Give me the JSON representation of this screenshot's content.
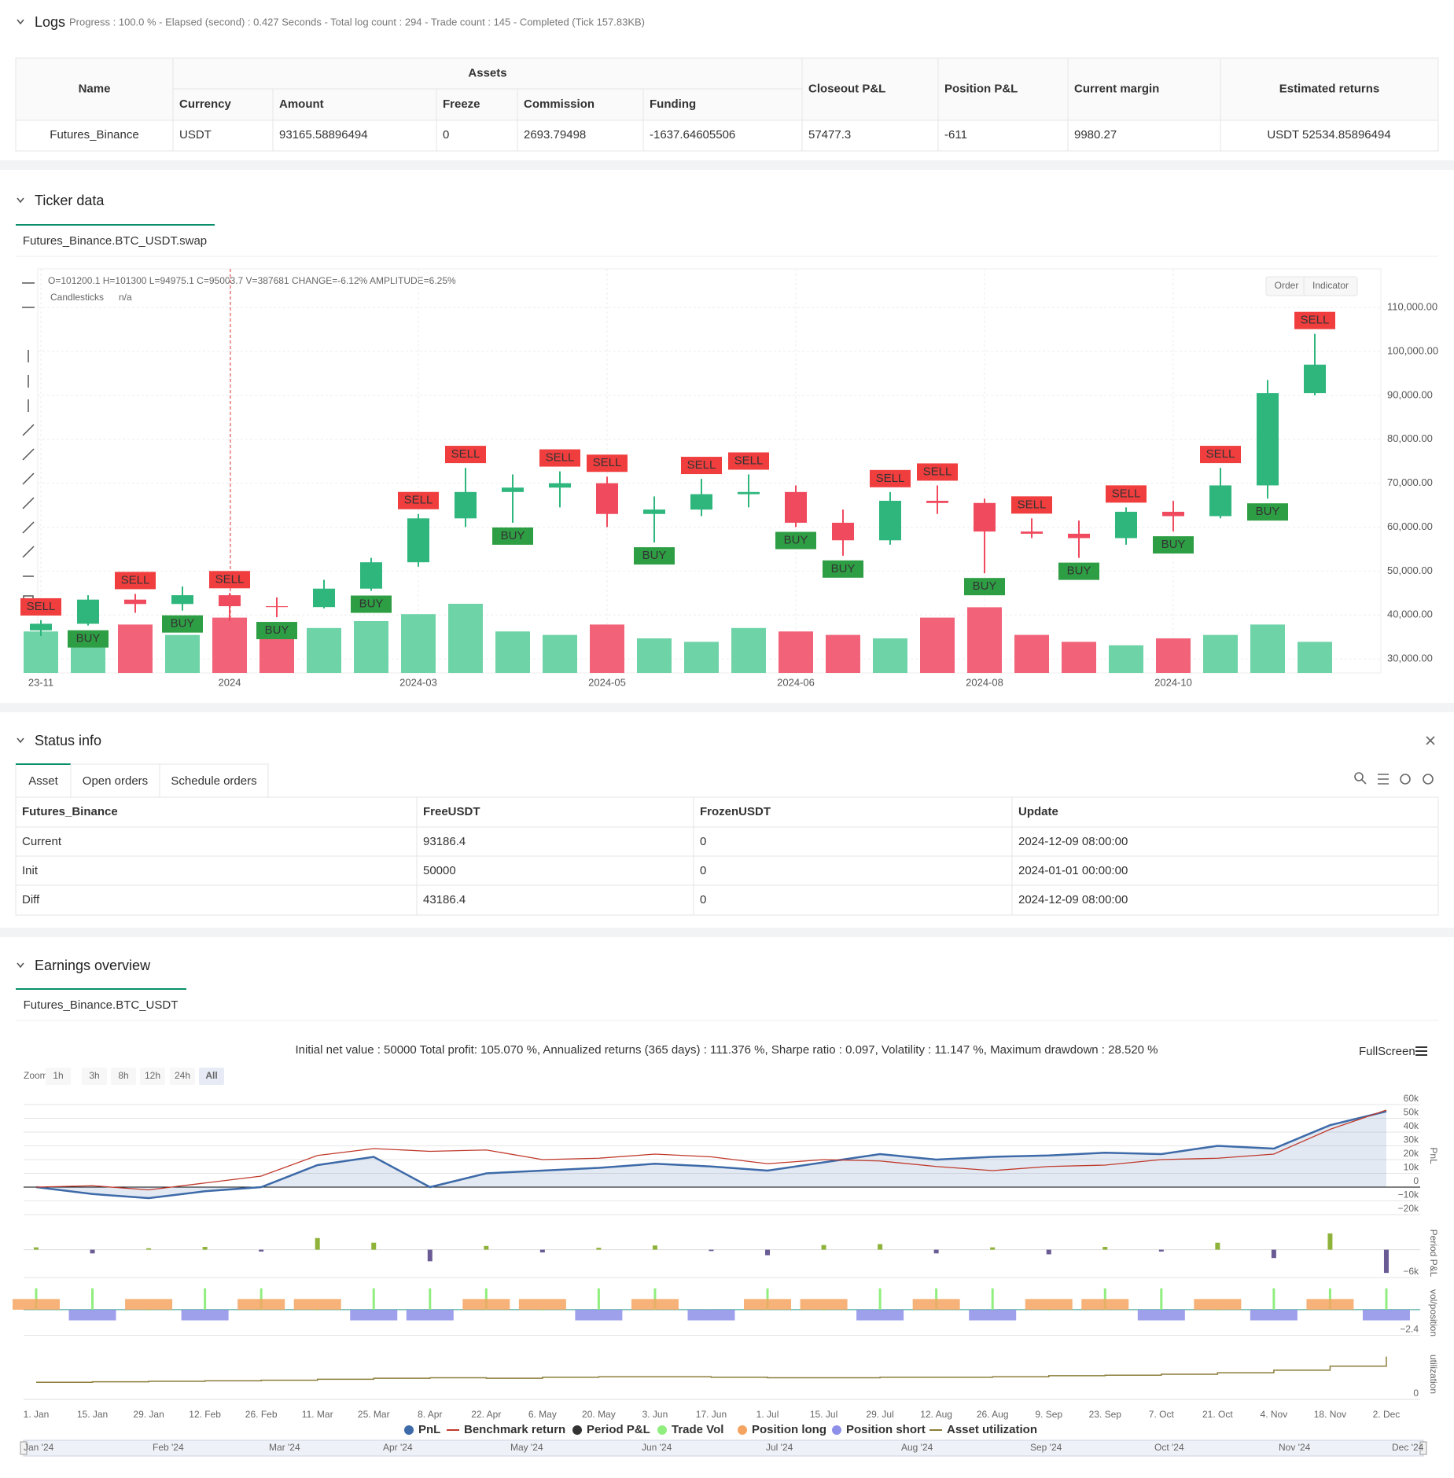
{
  "logs": {
    "title": "Logs",
    "summary": "Progress : 100.0 % - Elapsed (second) : 0.427 Seconds - Total log count : 294 - Trade count : 145 - Completed (Tick 157.83KB)",
    "table": {
      "groups": [
        "Name",
        "Assets",
        "Closeout P&L",
        "Position P&L",
        "Current margin",
        "Estimated returns"
      ],
      "columns": [
        "Currency",
        "Amount",
        "Freeze",
        "Commission",
        "Funding"
      ],
      "rows": [
        [
          "Futures_Binance",
          "USDT",
          "93165.58896494",
          "0",
          "2693.79498",
          "-1637.64605506",
          "57477.3",
          "-611",
          "9980.27",
          "USDT 52534.85896494"
        ]
      ]
    }
  },
  "ticker": {
    "title": "Ticker data",
    "tab": "Futures_Binance.BTC_USDT.swap",
    "ohlc": "O=101200.1 H=101300 L=94975.1 C=95003.7 V=387681 CHANGE=-6.12% AMPLITUDE=6.25%",
    "series_label": "Candlesticks",
    "series_value": "n/a",
    "buttons": [
      "Order",
      "Indicator"
    ],
    "chart": {
      "type": "candlestick",
      "categories": [
        "23-11",
        null,
        null,
        null,
        "2024",
        null,
        null,
        null,
        "2024-03",
        null,
        null,
        null,
        "2024-05",
        null,
        null,
        null,
        "2024-06",
        null,
        null,
        null,
        "2024-08",
        null,
        null,
        null,
        "2024-10",
        null,
        null,
        null
      ],
      "open": [
        36500,
        38000,
        43500,
        42500,
        44500,
        42000,
        41800,
        46000,
        52000,
        62000,
        68000,
        69000,
        70000,
        63000,
        64000,
        67500,
        68000,
        61000,
        57000,
        66000,
        65500,
        59000,
        58500,
        57500,
        63500,
        62500,
        69500,
        90500
      ],
      "high": [
        38800,
        44500,
        44800,
        46500,
        45000,
        44000,
        48000,
        53000,
        63000,
        73500,
        72000,
        72700,
        71500,
        67000,
        71000,
        72000,
        69500,
        64000,
        68000,
        69500,
        66500,
        62000,
        61500,
        64500,
        66000,
        73500,
        93500,
        104000
      ],
      "low": [
        35200,
        37600,
        40500,
        41000,
        38600,
        39500,
        41500,
        45500,
        51000,
        60000,
        61000,
        64500,
        60000,
        56500,
        62500,
        64500,
        60000,
        53500,
        56000,
        63000,
        49500,
        57500,
        53000,
        56000,
        59000,
        62000,
        66500,
        90000
      ],
      "close": [
        38000,
        43500,
        42500,
        44500,
        42000,
        41800,
        46000,
        52000,
        62000,
        68000,
        69000,
        70000,
        63000,
        64000,
        67500,
        68000,
        61000,
        57000,
        66000,
        65500,
        59000,
        58500,
        57500,
        63500,
        62500,
        69500,
        90500,
        97000
      ],
      "volume": [
        60,
        45,
        70,
        55,
        80,
        50,
        65,
        75,
        85,
        100,
        60,
        55,
        70,
        50,
        45,
        65,
        60,
        55,
        50,
        80,
        95,
        55,
        45,
        40,
        50,
        55,
        70,
        45
      ],
      "signals": [
        "SELL",
        "BUY",
        "SELL",
        "BUY",
        "SELL",
        "BUY",
        null,
        "BUY",
        "SELL",
        "SELL",
        "BUY",
        "SELL",
        "SELL",
        "BUY",
        "SELL",
        "SELL",
        "BUY",
        "BUY",
        "SELL",
        "SELL",
        "BUY",
        "SELL",
        "BUY",
        "SELL",
        "BUY",
        "SELL",
        "BUY",
        "SELL"
      ],
      "up_color": "#2eb67d",
      "down_color": "#f04a5e",
      "volume_up_color": "#6fd3a8",
      "volume_down_color": "#f2637a",
      "buy_color": "#2e9e44",
      "sell_color": "#f03e3e",
      "ylim": [
        26800,
        118800
      ],
      "yticks": [
        {
          "value": 30000,
          "label": "30,000.00"
        },
        {
          "value": 40000,
          "label": "40,000.00"
        },
        {
          "value": 50000,
          "label": "50,000.00"
        },
        {
          "value": 60000,
          "label": "60,000.00"
        },
        {
          "value": 70000,
          "label": "70,000.00"
        },
        {
          "value": 80000,
          "label": "80,000.00"
        },
        {
          "value": 90000,
          "label": "90,000.00"
        },
        {
          "value": 100000,
          "label": "100,000.00"
        },
        {
          "value": 110000,
          "label": "110,000.00"
        }
      ],
      "grid": true
    }
  },
  "status": {
    "title": "Status info",
    "tabs": [
      "Asset",
      "Open orders",
      "Schedule orders"
    ],
    "table": {
      "columns": [
        "Futures_Binance",
        "FreeUSDT",
        "FrozenUSDT",
        "Update"
      ],
      "rows": [
        [
          "Current",
          "93186.4",
          "0",
          "2024-12-09 08:00:00"
        ],
        [
          "Init",
          "50000",
          "0",
          "2024-01-01 00:00:00"
        ],
        [
          "Diff",
          "43186.4",
          "0",
          "2024-12-09 08:00:00"
        ]
      ]
    }
  },
  "earnings": {
    "title": "Earnings overview",
    "tab": "Futures_Binance.BTC_USDT",
    "summary": "Initial net value : 50000 Total profit: 105.070 %, Annualized returns (365 days) : 111.376 %, Sharpe ratio : 0.097, Volatility : 11.147 %, Maximum drawdown : 28.520 %",
    "fullscreen": "FullScreen",
    "zoom_label": "Zoom",
    "zoom_buttons": [
      "1h",
      "3h",
      "8h",
      "12h",
      "24h",
      "All"
    ],
    "navigator": [
      "Jan '24",
      "Feb '24",
      "Mar '24",
      "Apr '24",
      "May '24",
      "Jun '24",
      "Jul '24",
      "Aug '24",
      "Sep '24",
      "Oct '24",
      "Nov '24",
      "Dec '24"
    ],
    "chart": {
      "type": "multi-panel",
      "categories": [
        "1. Jan",
        "15. Jan",
        "29. Jan",
        "12. Feb",
        "26. Feb",
        "11. Mar",
        "25. Mar",
        "8. Apr",
        "22. Apr",
        "6. May",
        "20. May",
        "3. Jun",
        "17. Jun",
        "1. Jul",
        "15. Jul",
        "29. Jul",
        "12. Aug",
        "26. Aug",
        "9. Sep",
        "23. Sep",
        "7. Oct",
        "21. Oct",
        "4. Nov",
        "18. Nov",
        "2. Dec"
      ],
      "panels": [
        {
          "title": "PnL",
          "ylim": [
            -21700,
            67400
          ],
          "yticks": [
            {
              "value": 60000,
              "label": "60k"
            },
            {
              "value": 50000,
              "label": "50k"
            },
            {
              "value": 40000,
              "label": "40k"
            },
            {
              "value": 30000,
              "label": "30k"
            },
            {
              "value": 20000,
              "label": "20k"
            },
            {
              "value": 10000,
              "label": "10k"
            },
            0,
            {
              "value": -10000,
              "label": "−10k"
            },
            {
              "value": -20000,
              "label": "−20k"
            }
          ]
        },
        {
          "title": "Period P&L",
          "ylim": [
            -6500,
            5000
          ],
          "yticks": [
            {
              "value": -6000,
              "label": "−6k"
            }
          ]
        },
        {
          "title": "vol/position",
          "ylim": [
            -2.8,
            2.2
          ],
          "yticks": [
            {
              "value": -2.4,
              "label": "−2.4"
            }
          ]
        },
        {
          "title": "utilization",
          "ylim": [
            0,
            1
          ],
          "yticks": [
            0
          ]
        }
      ],
      "series": [
        {
          "name": "PnL",
          "type": "area",
          "panel": 0,
          "color": "#3d6aa8",
          "values": [
            0,
            -5000,
            -8000,
            -3000,
            0,
            16000,
            22000,
            0,
            10000,
            12000,
            14000,
            17000,
            15000,
            12000,
            18000,
            24000,
            20000,
            22000,
            23000,
            25000,
            24000,
            30000,
            28000,
            45000,
            55000
          ]
        },
        {
          "name": "Benchmark return",
          "type": "line",
          "panel": 0,
          "color": "#c0392b",
          "values": [
            0,
            1000,
            -2000,
            3000,
            8000,
            23000,
            28000,
            26000,
            27000,
            20000,
            21000,
            24000,
            22000,
            17000,
            20000,
            19000,
            15000,
            12000,
            15000,
            16000,
            20000,
            21000,
            24000,
            42000,
            56000
          ]
        },
        {
          "name": "Period P&L",
          "type": "column",
          "panel": 1,
          "color": "#333333",
          "positive_color": "#8fb33a",
          "negative_color": "#6b5b95",
          "values": [
            500,
            -800,
            300,
            600,
            -400,
            2500,
            1500,
            -2500,
            800,
            -600,
            400,
            900,
            -300,
            -1200,
            1000,
            1200,
            -800,
            500,
            -1000,
            600,
            -400,
            1500,
            -1800,
            3500,
            -5000
          ]
        },
        {
          "name": "Trade Vol",
          "type": "column",
          "panel": 2,
          "color": "#90ee7e",
          "values": [
            2,
            2,
            0,
            2,
            2,
            0,
            2,
            2,
            2,
            0,
            2,
            2,
            0,
            2,
            0,
            2,
            2,
            2,
            0,
            2,
            2,
            0,
            2,
            2,
            2
          ]
        },
        {
          "name": "Position long",
          "type": "band",
          "panel": 2,
          "color": "#f4a460",
          "values": [
            1,
            null,
            1,
            null,
            1,
            1,
            null,
            null,
            1,
            1,
            null,
            1,
            null,
            1,
            1,
            null,
            1,
            null,
            1,
            1,
            null,
            1,
            null,
            1,
            null
          ]
        },
        {
          "name": "Position short",
          "type": "band",
          "panel": 2,
          "color": "#8e8fe8",
          "values": [
            null,
            -1,
            null,
            -1,
            null,
            null,
            -1,
            -1,
            null,
            null,
            -1,
            null,
            -1,
            null,
            null,
            -1,
            null,
            -1,
            null,
            null,
            -1,
            null,
            -1,
            null,
            -1
          ]
        },
        {
          "name": "Asset utilization",
          "type": "step",
          "panel": 3,
          "color": "#8b7d3a",
          "values": [
            0.34,
            0.35,
            0.36,
            0.37,
            0.38,
            0.4,
            0.42,
            0.43,
            0.42,
            0.44,
            0.45,
            0.45,
            0.44,
            0.43,
            0.43,
            0.44,
            0.44,
            0.45,
            0.47,
            0.48,
            0.5,
            0.53,
            0.58,
            0.66,
            0.85
          ]
        }
      ]
    }
  }
}
